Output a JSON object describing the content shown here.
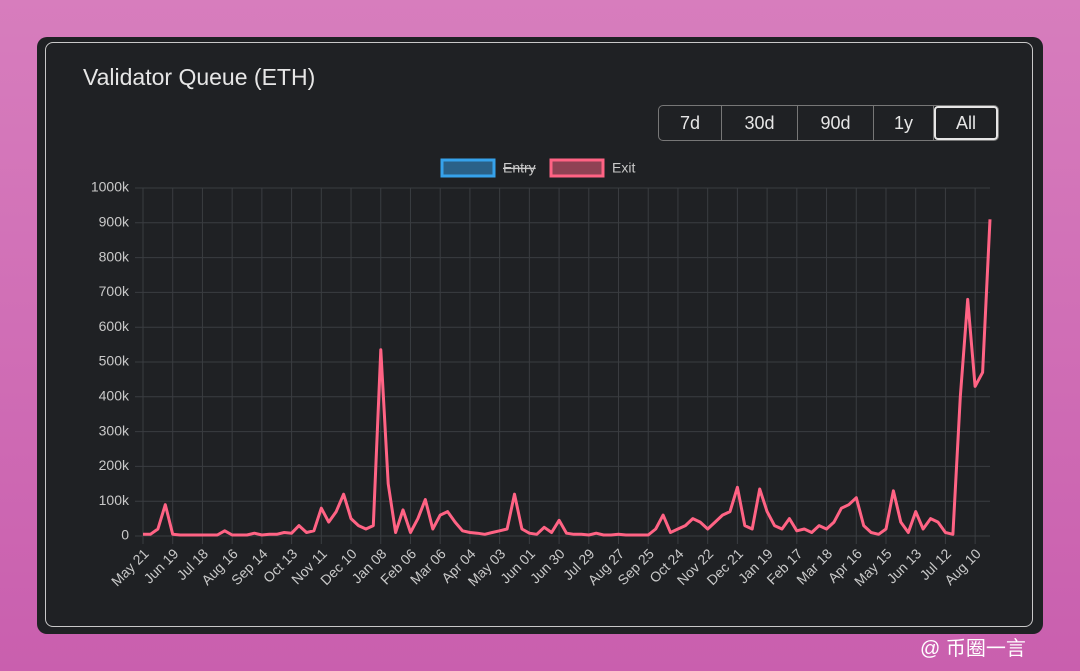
{
  "chart_data": {
    "type": "line",
    "title": "Validator Queue (ETH)",
    "categories": [
      "May 21",
      null,
      null,
      null,
      "Jun 19",
      null,
      null,
      null,
      "Jul 18",
      null,
      null,
      null,
      "Aug 16",
      null,
      null,
      null,
      "Sep 14",
      null,
      null,
      null,
      "Oct 13",
      null,
      null,
      null,
      "Nov 11",
      null,
      null,
      null,
      "Dec 10",
      null,
      null,
      null,
      "Jan 08",
      null,
      null,
      null,
      "Feb 06",
      null,
      null,
      null,
      "Mar 06",
      null,
      null,
      null,
      "Apr 04",
      null,
      null,
      null,
      "May 03",
      null,
      null,
      null,
      "Jun 01",
      null,
      null,
      null,
      "Jun 30",
      null,
      null,
      null,
      "Jul 29",
      null,
      null,
      null,
      "Aug 27",
      null,
      null,
      null,
      "Sep 25",
      null,
      null,
      null,
      "Oct 24",
      null,
      null,
      null,
      "Nov 22",
      null,
      null,
      null,
      "Dec 21",
      null,
      null,
      null,
      "Jan 19",
      null,
      null,
      null,
      "Feb 17",
      null,
      null,
      null,
      "Mar 18",
      null,
      null,
      null,
      "Apr 16",
      null,
      null,
      null,
      "May 15",
      null,
      null,
      null,
      "Jun 13",
      null,
      null,
      null,
      "Jul 12",
      null,
      null,
      null,
      "Aug 10",
      null,
      null
    ],
    "series": [
      {
        "name": "Entry",
        "color": "#36a2eb",
        "hidden": true
      },
      {
        "name": "Exit",
        "color": "#ff6384",
        "values": [
          5000,
          5000,
          20000,
          90000,
          5000,
          3000,
          3000,
          3000,
          3000,
          3000,
          3000,
          15000,
          3000,
          3000,
          3000,
          8000,
          3000,
          5000,
          5000,
          10000,
          8000,
          30000,
          10000,
          15000,
          80000,
          40000,
          70000,
          120000,
          50000,
          30000,
          20000,
          30000,
          535000,
          150000,
          10000,
          75000,
          10000,
          50000,
          105000,
          20000,
          60000,
          70000,
          40000,
          15000,
          10000,
          8000,
          5000,
          10000,
          15000,
          20000,
          120000,
          20000,
          8000,
          5000,
          25000,
          10000,
          45000,
          8000,
          5000,
          5000,
          3000,
          8000,
          3000,
          3000,
          5000,
          3000,
          3000,
          3000,
          3000,
          20000,
          60000,
          10000,
          20000,
          30000,
          50000,
          40000,
          20000,
          40000,
          60000,
          70000,
          140000,
          30000,
          20000,
          135000,
          70000,
          30000,
          20000,
          50000,
          15000,
          20000,
          10000,
          30000,
          20000,
          40000,
          80000,
          90000,
          110000,
          30000,
          10000,
          5000,
          20000,
          130000,
          40000,
          10000,
          70000,
          20000,
          50000,
          40000,
          10000,
          5000,
          400000,
          680000,
          430000,
          470000,
          910000
        ]
      }
    ],
    "ylim": [
      0,
      1000000
    ],
    "yticks": [
      0,
      {
        "value": 100000,
        "label": "100k"
      },
      {
        "value": 200000,
        "label": "200k"
      },
      {
        "value": 300000,
        "label": "300k"
      },
      {
        "value": 400000,
        "label": "400k"
      },
      {
        "value": 500000,
        "label": "500k"
      },
      {
        "value": 600000,
        "label": "600k"
      },
      {
        "value": 700000,
        "label": "700k"
      },
      {
        "value": 800000,
        "label": "800k"
      },
      {
        "value": 900000,
        "label": "900k"
      },
      {
        "value": 1000000,
        "label": "1000k"
      }
    ],
    "grid": true,
    "legend": "top"
  },
  "ui": {
    "range_buttons": [
      "7d",
      "30d",
      "90d",
      "1y",
      "All"
    ],
    "active_index": 4,
    "watermark": "@ 币圈一言"
  }
}
